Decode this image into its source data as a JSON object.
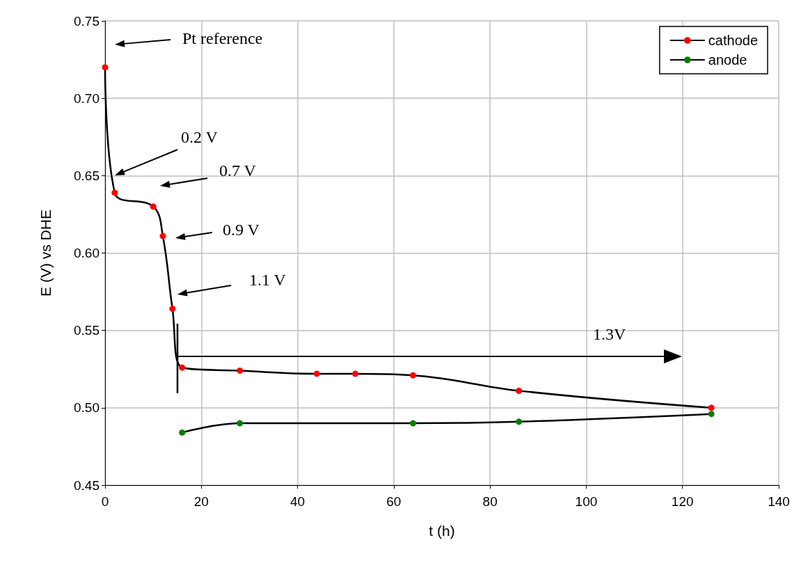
{
  "chart_data": {
    "type": "line",
    "xlabel": "t (h)",
    "ylabel": "E (V) vs DHE",
    "xlim": [
      0,
      140
    ],
    "xticks": [
      0,
      20,
      40,
      60,
      80,
      100,
      120,
      140
    ],
    "ylim": [
      0.45,
      0.75
    ],
    "yticks": [
      0.45,
      {
        "value": 0.5,
        "label": "0.50"
      },
      0.55,
      {
        "value": 0.6,
        "label": "0.60"
      },
      0.65,
      {
        "value": 0.7,
        "label": "0.70"
      },
      0.75
    ],
    "grid": true,
    "legend": "top right",
    "marker": "circle",
    "line_style": "solid",
    "series": [
      {
        "name": "cathode",
        "color": "#ff0000",
        "x": [
          0,
          2,
          10,
          12,
          14,
          16,
          28,
          44,
          52,
          64,
          86,
          126
        ],
        "values": [
          0.72,
          0.639,
          0.63,
          0.611,
          0.564,
          0.526,
          0.524,
          0.522,
          0.522,
          0.521,
          0.511,
          0.5
        ]
      },
      {
        "name": "anode",
        "color": "#008000",
        "x": [
          16,
          28,
          64,
          86,
          126
        ],
        "values": [
          0.484,
          0.49,
          0.49,
          0.491,
          0.496
        ]
      }
    ],
    "annotations": [
      "Pt reference",
      "0.2 V",
      "0.7 V",
      "0.9 V",
      "1.1 V",
      "1.3V"
    ]
  }
}
